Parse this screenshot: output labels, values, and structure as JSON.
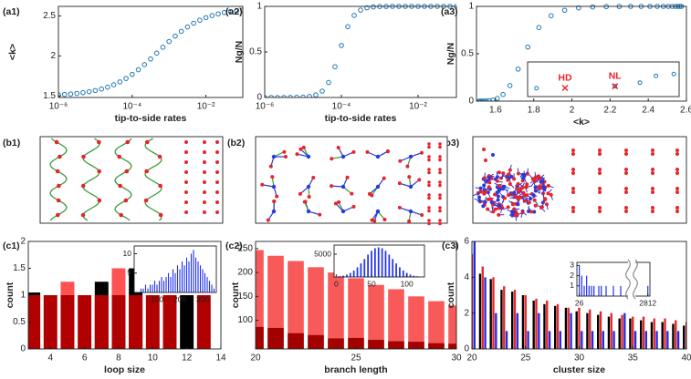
{
  "chart_data": [
    {
      "label": "(a1)",
      "type": "scatter",
      "xlabel": "tip-to-side rates",
      "ylabel": "<k>",
      "xscale": "log",
      "color": "#1f77b4",
      "marker": "circle",
      "x": [
        1e-06,
        1.47e-06,
        2.15e-06,
        3.16e-06,
        4.64e-06,
        6.81e-06,
        1e-05,
        1.47e-05,
        2.15e-05,
        3.16e-05,
        4.64e-05,
        6.81e-05,
        0.0001,
        0.000147,
        0.000215,
        0.000316,
        0.000464,
        0.000681,
        0.001,
        0.00147,
        0.00215,
        0.00316,
        0.00464,
        0.00681,
        0.01,
        0.0147,
        0.0215,
        0.0316,
        0.0464,
        0.0681,
        0.1
      ],
      "values": [
        1.514,
        1.518,
        1.524,
        1.531,
        1.54,
        1.552,
        1.567,
        1.586,
        1.609,
        1.639,
        1.675,
        1.718,
        1.769,
        1.827,
        1.891,
        1.962,
        2.035,
        2.109,
        2.18,
        2.248,
        2.308,
        2.363,
        2.409,
        2.447,
        2.479,
        2.505,
        2.526,
        2.543,
        2.556,
        2.566,
        2.574
      ],
      "xlim": [
        1e-06,
        0.1
      ],
      "ylim": [
        1.48,
        2.62
      ],
      "xticks": [
        {
          "value": 1e-06,
          "label": "10⁻⁶"
        },
        {
          "value": 0.0001,
          "label": "10⁻⁴"
        },
        {
          "value": 0.01,
          "label": "10⁻²"
        }
      ],
      "yticks": [
        1.5,
        2,
        2.5
      ]
    },
    {
      "label": "(a2)",
      "type": "scatter",
      "xlabel": "tip-to-side rates",
      "ylabel": "Ng/N",
      "xscale": "log",
      "color": "#1f77b4",
      "marker": "circle",
      "x": [
        1e-06,
        1.47e-06,
        2.15e-06,
        3.16e-06,
        4.64e-06,
        6.81e-06,
        1e-05,
        1.47e-05,
        2.15e-05,
        3.16e-05,
        4.64e-05,
        6.81e-05,
        0.0001,
        0.000147,
        0.000215,
        0.000316,
        0.000464,
        0.000681,
        0.001,
        0.00147,
        0.00215,
        0.00316,
        0.00464,
        0.00681,
        0.01,
        0.0147,
        0.0215,
        0.0316,
        0.0464,
        0.0681,
        0.1
      ],
      "values": [
        0,
        0,
        0,
        0,
        0.001,
        0.002,
        0.004,
        0.011,
        0.028,
        0.07,
        0.164,
        0.338,
        0.571,
        0.777,
        0.901,
        0.959,
        0.984,
        0.994,
        0.998,
        0.999,
        1,
        1,
        1,
        1,
        1,
        1,
        1,
        1,
        1,
        1,
        1
      ],
      "xlim": [
        1e-06,
        0.1
      ],
      "ylim": [
        0,
        1
      ],
      "xticks": [
        {
          "value": 1e-06,
          "label": "10⁻⁶"
        },
        {
          "value": 0.0001,
          "label": "10⁻⁴"
        },
        {
          "value": 0.01,
          "label": "10⁻²"
        }
      ],
      "yticks": [
        0,
        0.5,
        1
      ]
    },
    {
      "label": "(a3)",
      "type": "scatter",
      "xlabel": "<k>",
      "ylabel": "Ng/N",
      "color": "#1f77b4",
      "marker": "circle",
      "x": [
        1.514,
        1.518,
        1.524,
        1.531,
        1.54,
        1.552,
        1.567,
        1.586,
        1.609,
        1.639,
        1.675,
        1.718,
        1.769,
        1.827,
        1.891,
        1.962,
        2.035,
        2.109,
        2.18,
        2.248,
        2.308,
        2.363,
        2.409,
        2.447,
        2.479,
        2.505,
        2.526,
        2.543,
        2.556,
        2.566,
        2.574
      ],
      "values": [
        0,
        0,
        0,
        0,
        0.001,
        0.002,
        0.004,
        0.011,
        0.028,
        0.07,
        0.164,
        0.338,
        0.571,
        0.777,
        0.901,
        0.959,
        0.984,
        0.994,
        0.998,
        0.999,
        1,
        1,
        1,
        1,
        1,
        1,
        1,
        1,
        1,
        1,
        1
      ],
      "xlim": [
        1.5,
        2.6
      ],
      "ylim": [
        0,
        1
      ],
      "xticks": [
        1.6,
        1.8,
        2,
        2.2,
        2.4,
        2.6
      ],
      "yticks": [
        0,
        0.5,
        1
      ],
      "inset": {
        "type": "scatter",
        "color": "#1f77b4",
        "marker": "circle",
        "x": [
          1.8,
          2.24,
          2.38,
          2.47,
          2.57
        ],
        "values": [
          0.024,
          0.03,
          0.04,
          0.06,
          0.065
        ],
        "xlim": [
          1.75,
          2.6
        ],
        "ylim": [
          0,
          0.1
        ],
        "annotations": [
          {
            "text": "HD",
            "x": 1.96,
            "y": 0.025,
            "color": "#e8242a"
          },
          {
            "text": "NL",
            "x": 2.24,
            "y": 0.03,
            "color": "#e8242a"
          }
        ]
      }
    },
    {
      "label": "(c1)",
      "type": "bar",
      "bar_mode": "overlay",
      "xlabel": "loop size",
      "ylabel": "count",
      "x": [
        3,
        4,
        5,
        6,
        7,
        8,
        9,
        10,
        11,
        12,
        13
      ],
      "series": [
        {
          "color": "#000000",
          "values": [
            1.05,
            null,
            null,
            null,
            1.25,
            null,
            1.5,
            null,
            null,
            1,
            null
          ]
        },
        {
          "color": "#ff5252",
          "values": [
            null,
            null,
            1.25,
            null,
            null,
            1.5,
            null,
            null,
            null,
            null,
            null
          ]
        },
        {
          "color": "#b10000",
          "values": [
            1,
            1,
            1,
            1,
            1,
            1,
            1,
            1,
            1,
            null,
            1
          ]
        }
      ],
      "xlim": [
        2.7,
        14
      ],
      "ylim": [
        0,
        2
      ],
      "xticks": [
        4,
        6,
        8,
        10,
        12,
        14
      ],
      "yticks": [
        0,
        0.5,
        1,
        1.5,
        2
      ],
      "inset": {
        "type": "bar",
        "color": "#2233ee",
        "x": [
          10,
          20,
          30,
          40,
          50,
          60,
          70,
          80,
          90,
          100,
          110,
          120,
          130,
          140,
          150,
          160,
          170,
          180,
          190,
          200,
          210,
          220,
          230,
          240,
          250,
          260,
          270,
          280,
          290,
          300,
          310,
          320,
          330,
          340,
          350
        ],
        "values": [
          0,
          0,
          1,
          1,
          2,
          1,
          2,
          2,
          3,
          2,
          3,
          4,
          3,
          4,
          5,
          4,
          6,
          5,
          7,
          6,
          8,
          7,
          9,
          8,
          10,
          11,
          9,
          8,
          7,
          6,
          5,
          4,
          3,
          2,
          1
        ],
        "xlim": [
          0,
          360
        ],
        "ylim": [
          0,
          12
        ],
        "xticks": [
          100,
          200,
          300
        ],
        "yticks": [
          5,
          10
        ]
      }
    },
    {
      "label": "(c2)",
      "type": "bar",
      "bar_mode": "overlay",
      "xlabel": "branch length",
      "ylabel": "count",
      "x": [
        20,
        21,
        22,
        23,
        24,
        25,
        26,
        27,
        28,
        29,
        30
      ],
      "series": [
        {
          "color": "#f85a5a",
          "values": [
            247,
            235,
            224,
            211,
            200,
            188,
            174,
            165,
            150,
            140,
            131
          ]
        },
        {
          "color": "#a30000",
          "values": [
            86,
            84,
            73,
            69,
            62,
            63,
            59,
            56,
            55,
            52,
            51
          ]
        }
      ],
      "xlim": [
        20,
        30
      ],
      "ylim": [
        40,
        265
      ],
      "xticks": [
        20,
        25,
        30
      ],
      "yticks": [
        100,
        150,
        200,
        250
      ],
      "inset": {
        "type": "bar",
        "color": "#2233ee",
        "x": [
          0,
          5,
          10,
          15,
          20,
          25,
          30,
          35,
          40,
          45,
          50,
          55,
          60,
          65,
          70,
          75,
          80,
          85,
          90,
          95,
          100,
          105,
          110,
          115,
          120
        ],
        "values": [
          72,
          148,
          285,
          517,
          880,
          1406,
          2111,
          2975,
          3942,
          4908,
          5736,
          6298,
          6500,
          6298,
          5736,
          4908,
          3942,
          2975,
          2111,
          1406,
          880,
          517,
          285,
          148,
          72
        ],
        "xlim": [
          -3,
          125
        ],
        "ylim": [
          0,
          7000
        ],
        "xticks": [
          0,
          50,
          100
        ],
        "yticks": [
          5000
        ]
      }
    },
    {
      "label": "(c3)",
      "type": "bar",
      "bar_mode": "grouped",
      "xlabel": "cluster size",
      "ylabel": "count",
      "x": [
        20,
        21,
        22,
        23,
        24,
        25,
        26,
        27,
        28,
        29,
        30,
        31,
        32,
        33,
        34,
        35,
        36,
        37,
        38,
        39,
        40
      ],
      "series": [
        {
          "color": "#000000",
          "values": [
            5,
            4.2,
            3.9,
            3.3,
            3.2,
            3,
            2.7,
            2.5,
            2.4,
            2.3,
            2.1,
            2,
            1.9,
            1.8,
            1.7,
            1.7,
            1.6,
            1.5,
            1.5,
            1.4,
            1.3
          ]
        },
        {
          "color": "#e8242a",
          "values": [
            5.3,
            4.6,
            4,
            3.5,
            3.3,
            3,
            2.8,
            2.7,
            2.5,
            2.3,
            2.3,
            2.2,
            2.1,
            2,
            1.9,
            1.8,
            1.8,
            1.7,
            1.7,
            1.6,
            1.5
          ]
        },
        {
          "color": "#1e2ee6",
          "values": [
            6,
            4,
            2,
            1,
            2,
            1,
            2,
            1,
            1,
            2,
            1,
            1,
            1,
            1,
            2,
            1,
            1,
            1,
            1,
            1,
            null
          ]
        }
      ],
      "xlim": [
        20,
        40
      ],
      "ylim": [
        0,
        6
      ],
      "xticks": [
        20,
        25,
        30,
        35,
        40
      ],
      "yticks": [
        0,
        2,
        4,
        6
      ],
      "inset": {
        "type": "bar",
        "color": "#2233ee",
        "x": [
          26,
          27,
          28,
          29,
          30,
          31,
          32,
          34,
          35,
          37,
          40,
          43,
          2812
        ],
        "values": [
          3,
          2,
          1,
          2,
          1,
          1,
          1,
          1,
          1,
          1,
          1,
          1,
          1
        ],
        "xlim": [
          25,
          2813
        ],
        "axis_break": [
          46,
          2806
        ],
        "ylim": [
          0,
          3.3
        ],
        "xticks": [
          26,
          2812
        ],
        "yticks": [
          1,
          2,
          3
        ]
      }
    }
  ],
  "network_panels": [
    {
      "label": "(b1)"
    },
    {
      "label": "(b2)"
    },
    {
      "label": "(b3)"
    }
  ]
}
